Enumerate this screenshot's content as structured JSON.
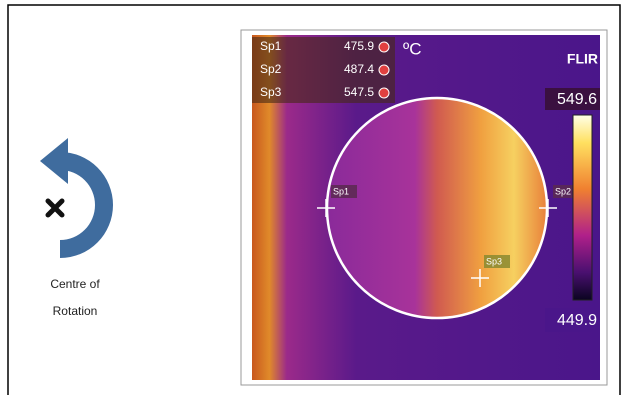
{
  "rotation": {
    "label_lines": [
      "Centre of",
      "Rotation"
    ]
  },
  "thermal": {
    "unit": "ºC",
    "logo": "FLIR",
    "spots": [
      {
        "name": "Sp1",
        "value": "475.9"
      },
      {
        "name": "Sp2",
        "value": "487.4"
      },
      {
        "name": "Sp3",
        "value": "547.5"
      }
    ],
    "scale": {
      "max": "549.6",
      "min": "449.9"
    }
  }
}
